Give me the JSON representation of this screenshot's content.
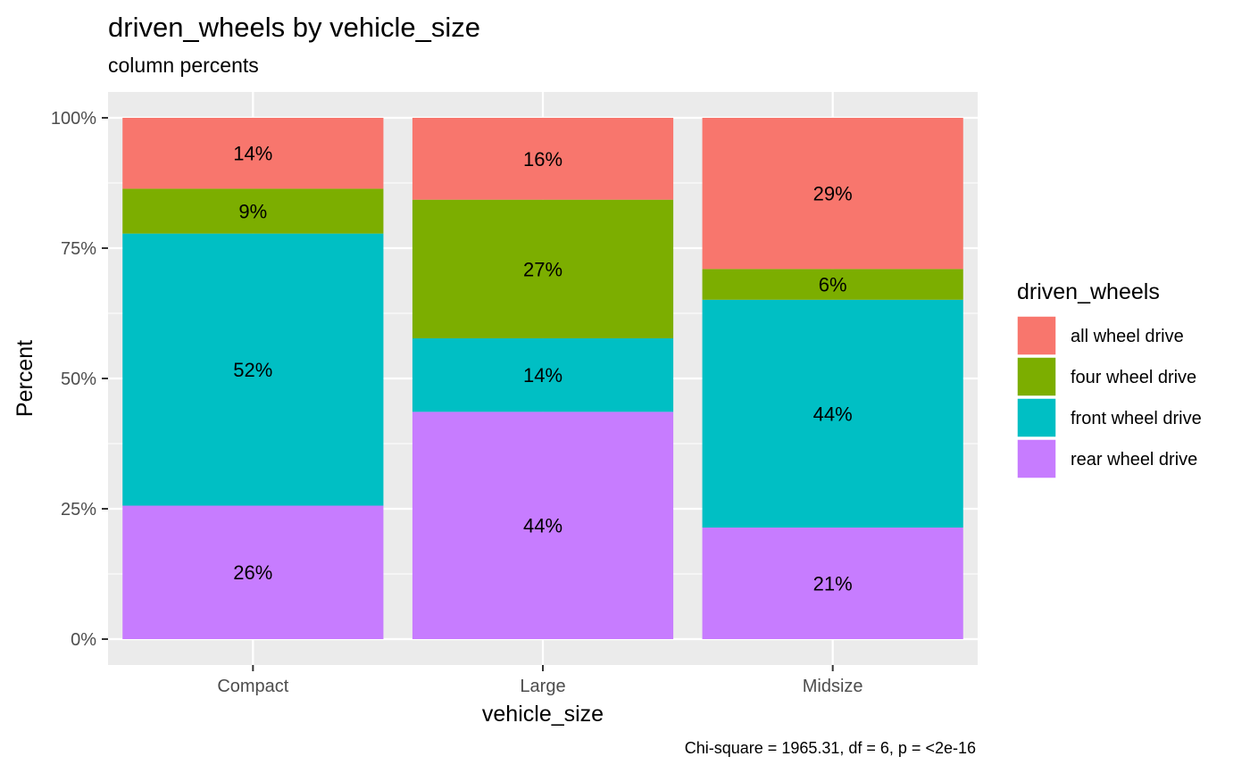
{
  "chart_data": {
    "type": "bar",
    "stacked": true,
    "title": "driven_wheels  by  vehicle_size",
    "subtitle": "column percents",
    "xlabel": "vehicle_size",
    "ylabel": "Percent",
    "ylim": [
      0,
      100
    ],
    "yticks": [
      "0%",
      "25%",
      "50%",
      "75%",
      "100%"
    ],
    "categories": [
      "Compact",
      "Large",
      "Midsize"
    ],
    "series": [
      {
        "name": "rear wheel drive",
        "color": "#C77CFF",
        "values": [
          25.6,
          43.6,
          21.4
        ],
        "labels": [
          "26%",
          "44%",
          "21%"
        ]
      },
      {
        "name": "front wheel drive",
        "color": "#00BFC4",
        "values": [
          52.2,
          14.1,
          43.7
        ],
        "labels": [
          "52%",
          "14%",
          "44%"
        ]
      },
      {
        "name": "four wheel drive",
        "color": "#7CAE00",
        "values": [
          8.6,
          26.6,
          5.9
        ],
        "labels": [
          "9%",
          "27%",
          "6%"
        ]
      },
      {
        "name": "all wheel drive",
        "color": "#F8766D",
        "values": [
          13.6,
          15.7,
          29.0
        ],
        "labels": [
          "14%",
          "16%",
          "29%"
        ]
      }
    ],
    "legend": {
      "title": "driven_wheels",
      "position": "right",
      "order": [
        "all wheel drive",
        "four wheel drive",
        "front wheel drive",
        "rear wheel drive"
      ]
    },
    "caption": "Chi-square = 1965.31, df = 6, p = <2e-16",
    "grid": true,
    "panel_background": "#EBEBEB"
  }
}
